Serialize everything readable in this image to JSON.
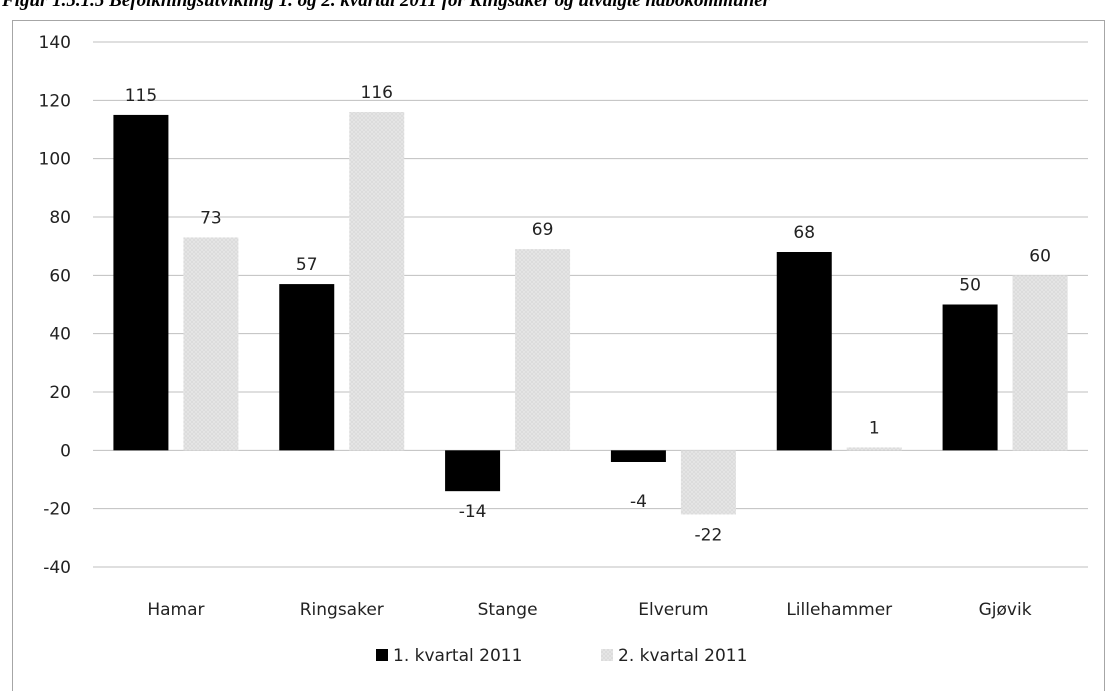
{
  "caption": "Figur 1.5.1.5 Befolkningsutvikling 1. og 2. kvartal 2011 for Ringsaker og utvalgte nabokommuner",
  "chart_data": {
    "type": "bar",
    "categories": [
      "Hamar",
      "Ringsaker",
      "Stange",
      "Elverum",
      "Lillehammer",
      "Gjøvik"
    ],
    "series": [
      {
        "name": "1. kvartal 2011",
        "values": [
          115,
          57,
          -14,
          -4,
          68,
          50
        ],
        "color": "#000000"
      },
      {
        "name": "2. kvartal 2011",
        "values": [
          73,
          116,
          69,
          -22,
          1,
          60
        ],
        "color": "#d9d9d9"
      }
    ],
    "ylim": [
      -40,
      140
    ],
    "yticks": [
      -40,
      -20,
      0,
      20,
      40,
      60,
      80,
      100,
      120,
      140
    ],
    "grid": true,
    "legend": "bottom",
    "data_labels": true
  }
}
